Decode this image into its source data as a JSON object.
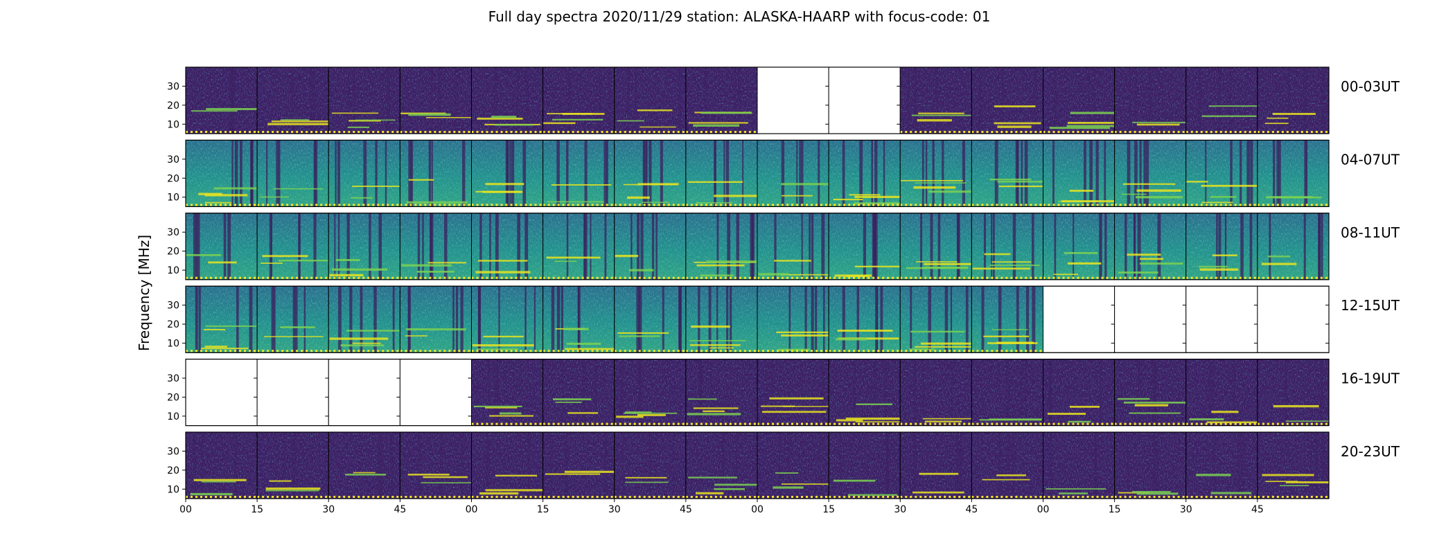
{
  "chart_data": {
    "type": "heatmap",
    "title": "Full day spectra 2020/11/29 station: ALASKA-HAARP with focus-code: 01",
    "ylabel": "Frequency [MHz]",
    "yticks": [
      10,
      20,
      30
    ],
    "ylim": [
      5,
      40
    ],
    "xticklabels": [
      "00",
      "15",
      "30",
      "45",
      "00",
      "15",
      "30",
      "45",
      "00",
      "15",
      "30",
      "45",
      "00",
      "15",
      "30",
      "45"
    ],
    "colormap": "viridis",
    "rows": [
      {
        "label": "00-03UT",
        "style": "quiet",
        "panels": [
          1,
          1,
          1,
          1,
          1,
          1,
          1,
          1,
          0,
          0,
          1,
          1,
          1,
          1,
          1,
          1
        ]
      },
      {
        "label": "04-07UT",
        "style": "active",
        "panels": [
          1,
          1,
          1,
          1,
          1,
          1,
          1,
          1,
          1,
          1,
          1,
          1,
          1,
          1,
          1,
          1
        ]
      },
      {
        "label": "08-11UT",
        "style": "active",
        "panels": [
          1,
          1,
          1,
          1,
          1,
          1,
          1,
          1,
          1,
          1,
          1,
          1,
          1,
          1,
          1,
          1
        ]
      },
      {
        "label": "12-15UT",
        "style": "active",
        "panels": [
          1,
          1,
          1,
          1,
          1,
          1,
          1,
          1,
          1,
          1,
          1,
          1,
          0,
          0,
          0,
          0
        ]
      },
      {
        "label": "16-19UT",
        "style": "quiet",
        "panels": [
          0,
          0,
          0,
          0,
          1,
          1,
          1,
          1,
          1,
          1,
          1,
          1,
          1,
          1,
          1,
          1
        ]
      },
      {
        "label": "20-23UT",
        "style": "quiet",
        "panels": [
          1,
          1,
          1,
          1,
          1,
          1,
          1,
          1,
          1,
          1,
          1,
          1,
          1,
          1,
          1,
          1
        ]
      }
    ]
  }
}
